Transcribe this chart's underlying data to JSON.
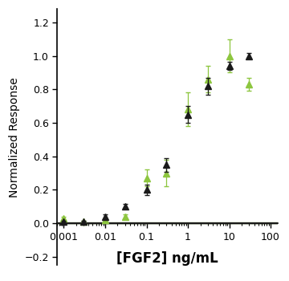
{
  "title": "",
  "xlabel": "[FGF2] ng/mL",
  "ylabel": "Normalized Response",
  "xlim": [
    0.0007,
    150
  ],
  "ylim": [
    -0.25,
    1.28
  ],
  "yticks": [
    -0.2,
    0.0,
    0.2,
    0.4,
    0.6,
    0.8,
    1.0,
    1.2
  ],
  "black_x": [
    0.001,
    0.003,
    0.01,
    0.03,
    0.1,
    0.3,
    1.0,
    3.0,
    10.0,
    30.0
  ],
  "black_y": [
    0.01,
    0.01,
    0.04,
    0.1,
    0.2,
    0.35,
    0.65,
    0.82,
    0.94,
    1.0
  ],
  "black_yerr": [
    0.005,
    0.005,
    0.015,
    0.015,
    0.03,
    0.04,
    0.05,
    0.05,
    0.025,
    0.015
  ],
  "green_x": [
    0.001,
    0.003,
    0.01,
    0.03,
    0.1,
    0.3,
    1.0,
    3.0,
    10.0,
    30.0
  ],
  "green_y": [
    0.03,
    0.01,
    0.02,
    0.04,
    0.27,
    0.3,
    0.68,
    0.86,
    1.0,
    0.83
  ],
  "green_yerr": [
    0.01,
    0.005,
    0.01,
    0.015,
    0.05,
    0.08,
    0.1,
    0.08,
    0.1,
    0.04
  ],
  "black_color": "#1a1a1a",
  "green_color": "#8DC63F",
  "line_width": 1.6,
  "marker_size": 6,
  "cap_size": 2.5,
  "background_color": "#ffffff",
  "xlabel_fontsize": 12,
  "ylabel_fontsize": 10,
  "tick_labelsize": 9
}
